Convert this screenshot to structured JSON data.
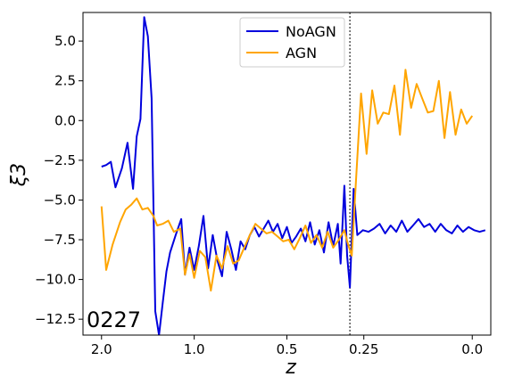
{
  "chart_data": {
    "type": "line",
    "xlabel": "z",
    "ylabel": "ξ3",
    "annotation": "0227",
    "legend_position": "top-center",
    "grid": false,
    "x_ticks": [
      {
        "pos": 0.0,
        "label": "2.0"
      },
      {
        "pos": 1.0,
        "label": "1.0"
      },
      {
        "pos": 2.0,
        "label": "0.5"
      },
      {
        "pos": 2.83,
        "label": "0.25"
      },
      {
        "pos": 4.0,
        "label": "0.0"
      }
    ],
    "xlim": [
      -0.2,
      4.2
    ],
    "ylim": [
      -13.5,
      6.8
    ],
    "y_ticks": [
      5.0,
      2.5,
      0.0,
      -2.5,
      -5.0,
      -7.5,
      -10.0,
      -12.5
    ],
    "y_tick_labels": [
      "5.0",
      "2.5",
      "0.0",
      "−2.5",
      "−5.0",
      "−7.5",
      "−10.0",
      "−12.5"
    ],
    "vline": {
      "pos": 2.68,
      "style": "dotted"
    },
    "series": [
      {
        "name": "NoAGN",
        "color": "#0000dd",
        "x": [
          0.0,
          0.05,
          0.1,
          0.15,
          0.22,
          0.28,
          0.34,
          0.38,
          0.42,
          0.46,
          0.5,
          0.54,
          0.58,
          0.62,
          0.66,
          0.7,
          0.74,
          0.8,
          0.86,
          0.9,
          0.95,
          1.0,
          1.05,
          1.1,
          1.15,
          1.2,
          1.25,
          1.3,
          1.35,
          1.4,
          1.45,
          1.5,
          1.55,
          1.6,
          1.65,
          1.7,
          1.75,
          1.8,
          1.85,
          1.9,
          1.95,
          2.0,
          2.05,
          2.1,
          2.15,
          2.2,
          2.25,
          2.3,
          2.35,
          2.4,
          2.45,
          2.5,
          2.55,
          2.58,
          2.62,
          2.65,
          2.68,
          2.72,
          2.76,
          2.82,
          2.88,
          2.94,
          3.0,
          3.06,
          3.12,
          3.18,
          3.24,
          3.3,
          3.36,
          3.42,
          3.48,
          3.54,
          3.6,
          3.66,
          3.72,
          3.78,
          3.84,
          3.9,
          3.96,
          4.02,
          4.08,
          4.14
        ],
        "values": [
          -2.9,
          -2.8,
          -2.6,
          -4.2,
          -3.0,
          -1.4,
          -4.3,
          -1.0,
          0.1,
          6.5,
          5.3,
          1.4,
          -12.0,
          -13.5,
          -11.5,
          -9.5,
          -8.3,
          -7.2,
          -6.2,
          -9.7,
          -8.0,
          -9.4,
          -7.9,
          -6.0,
          -9.3,
          -7.2,
          -8.8,
          -9.8,
          -7.0,
          -8.1,
          -9.4,
          -7.6,
          -8.1,
          -7.2,
          -6.7,
          -7.3,
          -6.8,
          -6.3,
          -7.0,
          -6.5,
          -7.4,
          -6.7,
          -7.7,
          -7.3,
          -6.8,
          -7.6,
          -6.4,
          -7.8,
          -6.9,
          -8.3,
          -6.4,
          -7.9,
          -6.5,
          -9.0,
          -4.1,
          -8.5,
          -10.5,
          -4.3,
          -7.2,
          -6.9,
          -7.0,
          -6.8,
          -6.5,
          -7.1,
          -6.6,
          -7.0,
          -6.3,
          -7.0,
          -6.6,
          -6.2,
          -6.7,
          -6.5,
          -7.0,
          -6.5,
          -6.9,
          -7.1,
          -6.6,
          -7.0,
          -6.7,
          -6.9,
          -7.0,
          -6.9
        ]
      },
      {
        "name": "AGN",
        "color": "#ffa500",
        "x": [
          0.0,
          0.05,
          0.12,
          0.2,
          0.26,
          0.32,
          0.38,
          0.44,
          0.5,
          0.56,
          0.6,
          0.66,
          0.72,
          0.78,
          0.85,
          0.9,
          0.95,
          1.0,
          1.06,
          1.12,
          1.18,
          1.24,
          1.3,
          1.36,
          1.42,
          1.48,
          1.54,
          1.6,
          1.66,
          1.72,
          1.78,
          1.84,
          1.9,
          1.96,
          2.02,
          2.08,
          2.14,
          2.2,
          2.26,
          2.32,
          2.38,
          2.44,
          2.5,
          2.56,
          2.62,
          2.66,
          2.7,
          2.74,
          2.8,
          2.86,
          2.92,
          2.98,
          3.04,
          3.1,
          3.16,
          3.22,
          3.28,
          3.34,
          3.4,
          3.46,
          3.52,
          3.58,
          3.64,
          3.7,
          3.76,
          3.82,
          3.88,
          3.94,
          4.0
        ],
        "values": [
          -5.4,
          -9.4,
          -7.8,
          -6.4,
          -5.6,
          -5.3,
          -4.9,
          -5.6,
          -5.5,
          -6.0,
          -6.6,
          -6.5,
          -6.3,
          -7.0,
          -6.8,
          -9.7,
          -8.4,
          -9.9,
          -8.2,
          -8.6,
          -10.7,
          -8.5,
          -9.3,
          -7.9,
          -9.0,
          -8.8,
          -8.0,
          -7.2,
          -6.5,
          -6.8,
          -7.1,
          -7.0,
          -7.3,
          -7.6,
          -7.5,
          -8.1,
          -7.4,
          -6.6,
          -7.7,
          -7.2,
          -8.0,
          -7.0,
          -8.0,
          -7.5,
          -6.9,
          -7.8,
          -8.5,
          -4.3,
          1.7,
          -2.1,
          1.9,
          -0.2,
          0.5,
          0.4,
          2.2,
          -0.9,
          3.2,
          0.8,
          2.3,
          1.4,
          0.5,
          0.6,
          2.5,
          -1.1,
          1.8,
          -0.9,
          0.7,
          -0.2,
          0.3
        ]
      }
    ]
  }
}
